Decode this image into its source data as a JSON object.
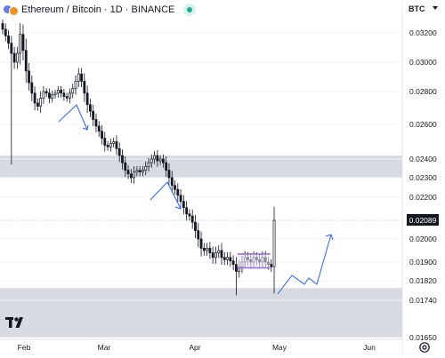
{
  "header": {
    "title": "Ethereum / Bitcoin · 1D · BINANCE",
    "icons": [
      "ethereum-icon",
      "bitcoin-icon"
    ],
    "status_color": "#22ab94"
  },
  "currency_label": "BTC",
  "last_price_label": "0.02089",
  "colors": {
    "up": "#131722",
    "down": "#131722",
    "zone_fill": "#d1d4dc",
    "box_stroke": "#9c6ee0",
    "box_fill": "#ede4fb",
    "arrows": "#2962ff"
  },
  "chart_data": {
    "type": "candlestick",
    "y_axis": {
      "scale": "linear",
      "ticks": [
        "0.03200",
        "0.03000",
        "0.02800",
        "0.02600",
        "0.02400",
        "0.02300",
        "0.02200",
        "0.02000",
        "0.01900",
        "0.01820",
        "0.01740",
        "0.01650"
      ],
      "tick_values": [
        0.032,
        0.03,
        0.028,
        0.026,
        0.024,
        0.023,
        0.022,
        0.02,
        0.019,
        0.0182,
        0.0174,
        0.0165
      ]
    },
    "x_axis": {
      "ticks": [
        "Feb",
        "Mar",
        "Apr",
        "May",
        "Jun"
      ]
    },
    "start_date": "2024-01-27",
    "closes": [
      0.03225,
      0.0318,
      0.0313,
      0.0306,
      0.03,
      0.0306,
      0.0319,
      0.0308,
      0.0294,
      0.0286,
      0.0279,
      0.0273,
      0.0271,
      0.0276,
      0.028,
      0.0279,
      0.0276,
      0.0278,
      0.0279,
      0.0281,
      0.0279,
      0.0277,
      0.0276,
      0.0279,
      0.0282,
      0.0287,
      0.0292,
      0.0287,
      0.0279,
      0.0272,
      0.0268,
      0.0263,
      0.0259,
      0.0256,
      0.0252,
      0.0248,
      0.0247,
      0.0249,
      0.025,
      0.0246,
      0.0242,
      0.0238,
      0.0234,
      0.0232,
      0.023,
      0.0233,
      0.0234,
      0.0233,
      0.0234,
      0.0236,
      0.0238,
      0.024,
      0.0242,
      0.0239,
      0.024,
      0.0238,
      0.0234,
      0.023,
      0.0226,
      0.0224,
      0.0221,
      0.0218,
      0.0215,
      0.0212,
      0.0211,
      0.0208,
      0.0204,
      0.02,
      0.0196,
      0.0195,
      0.0196,
      0.0194,
      0.0192,
      0.0194,
      0.0195,
      0.0192,
      0.0191,
      0.0192,
      0.01905,
      0.0189,
      0.0186,
      0.0188,
      0.019,
      0.0192,
      0.0191,
      0.019,
      0.0192,
      0.0191,
      0.019,
      0.0192,
      0.019,
      0.0189,
      0.0188,
      0.02089
    ],
    "support_zones": [
      [
        0.023,
        0.0242
      ],
      [
        0.0165,
        0.0179
      ]
    ],
    "range_box": {
      "from_index": 81,
      "to_index": 91,
      "top": 0.01935,
      "bottom": 0.01875
    },
    "last_price": 0.02089
  }
}
